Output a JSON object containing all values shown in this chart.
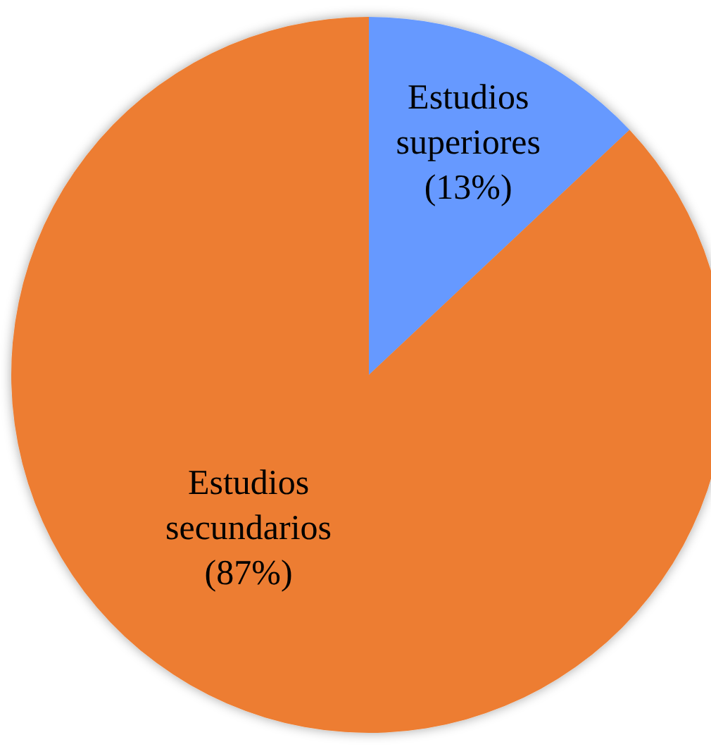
{
  "chart_data": {
    "type": "pie",
    "categories": [
      "Estudios superiores",
      "Estudios secundarios"
    ],
    "values": [
      13,
      87
    ],
    "colors": [
      "#6699ff",
      "#ed7d31"
    ],
    "value_labels": [
      "(13%)",
      "(87%)"
    ]
  }
}
